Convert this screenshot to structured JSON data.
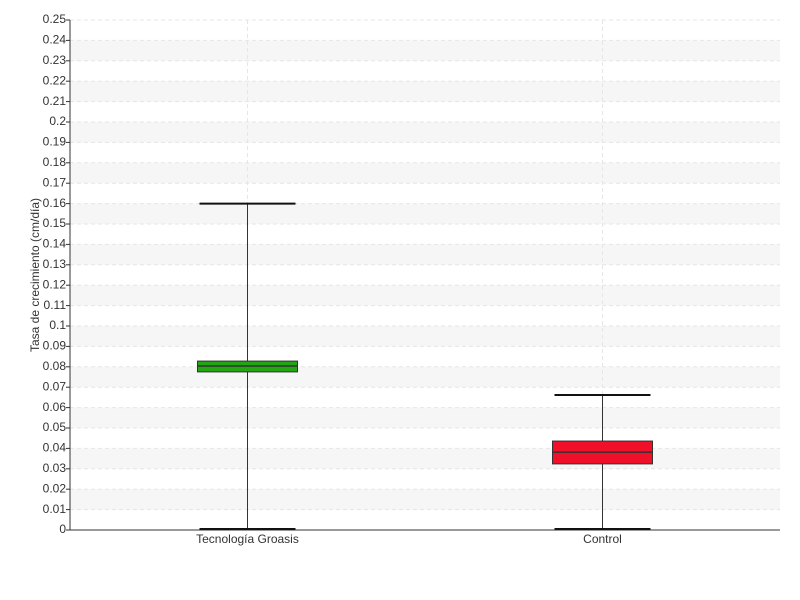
{
  "chart_data": {
    "type": "box",
    "y_label": "Tasa de crecimiento (cm/día)",
    "categories": [
      "Tecnología Groasis",
      "Control"
    ],
    "low": [
      0,
      0
    ],
    "q1": [
      0.0775,
      0.0324
    ],
    "median": [
      0.0804,
      0.0382
    ],
    "q3": [
      0.0828,
      0.0436
    ],
    "high": [
      0.16,
      0.0662
    ],
    "colors": [
      "#22a612",
      "#f0102a"
    ],
    "ylim": [
      0,
      0.25
    ],
    "yticks": [
      0,
      0.01,
      0.02,
      0.03,
      0.04,
      0.05,
      0.06,
      0.07,
      0.08,
      0.09,
      0.1,
      0.11,
      0.12,
      0.13,
      0.14,
      0.15,
      0.16,
      0.17,
      0.18,
      0.19,
      0.2,
      0.21,
      0.22,
      0.23,
      0.24,
      0.25
    ],
    "grid": true
  }
}
